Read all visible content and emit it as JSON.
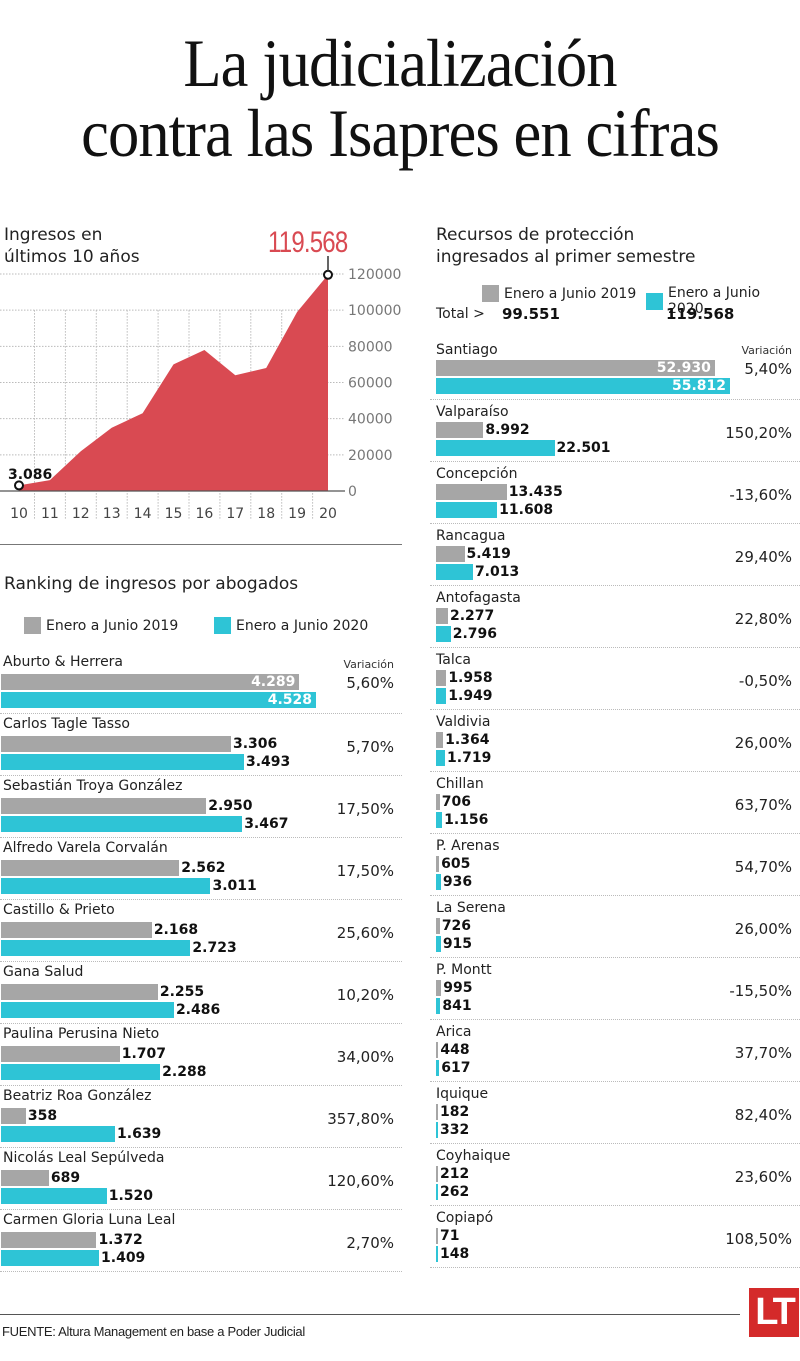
{
  "header": {
    "title_line1": "La judicialización",
    "title_line2": "contra las Isapres en cifras"
  },
  "legend": {
    "series_2019": "Enero a Junio 2019",
    "series_2020": "Enero a Junio 2020",
    "color_2019": "#a6a6a6",
    "color_2020": "#2ec4d6"
  },
  "variation_header": "Variación",
  "chart_data": [
    {
      "type": "area",
      "title": "Ingresos en últimos 10 años",
      "title_line1": "Ingresos en",
      "title_line2": "últimos 10 años",
      "x": [
        "10",
        "11",
        "12",
        "13",
        "14",
        "15",
        "16",
        "17",
        "18",
        "19",
        "20"
      ],
      "values": [
        3086,
        6000,
        22000,
        35000,
        43000,
        70000,
        78000,
        64000,
        68000,
        99000,
        119568
      ],
      "yticks": [
        "0",
        "20000",
        "40000",
        "60000",
        "80000",
        "100000",
        "120000"
      ],
      "ylim": [
        0,
        120000
      ],
      "grid": true,
      "color": "#d94a52",
      "start_label": "3.086",
      "peak_label": "119.568",
      "xlabel": "",
      "ylabel": ""
    },
    {
      "type": "bar",
      "title": "Ranking de ingresos por abogados",
      "series": [
        {
          "name": "Enero a Junio 2019",
          "values": [
            4289,
            3306,
            2950,
            2562,
            2168,
            2255,
            1707,
            358,
            689,
            1372
          ]
        },
        {
          "name": "Enero a Junio 2020",
          "values": [
            4528,
            3493,
            3467,
            3011,
            2723,
            2486,
            2288,
            1639,
            1520,
            1409
          ]
        }
      ],
      "categories": [
        "Aburto & Herrera",
        "Carlos Tagle Tasso",
        "Sebastián Troya González",
        "Alfredo Varela Corvalán",
        "Castillo & Prieto",
        "Gana Salud",
        "Paulina Perusina Nieto",
        "Beatriz Roa González",
        "Nicolás Leal Sepúlveda",
        "Carmen Gloria Luna Leal"
      ],
      "labels_2019": [
        "4.289",
        "3.306",
        "2.950",
        "2.562",
        "2.168",
        "2.255",
        "1.707",
        "358",
        "689",
        "1.372"
      ],
      "labels_2020": [
        "4.528",
        "3.493",
        "3.467",
        "3.011",
        "2.723",
        "2.486",
        "2.288",
        "1.639",
        "1.520",
        "1.409"
      ],
      "variation": [
        "5,60%",
        "5,70%",
        "17,50%",
        "17,50%",
        "25,60%",
        "10,20%",
        "34,00%",
        "357,80%",
        "120,60%",
        "2,70%"
      ],
      "max": 4528
    },
    {
      "type": "bar",
      "title": "Recursos de protección ingresados al primer semestre",
      "title_line1": "Recursos de protección",
      "title_line2": "ingresados al primer semestre",
      "total_label": "Total >",
      "total_2019": "99.551",
      "total_2020": "119.568",
      "series": [
        {
          "name": "Enero a Junio 2019",
          "values": [
            52930,
            8992,
            13435,
            5419,
            2277,
            1958,
            1364,
            706,
            605,
            726,
            995,
            448,
            182,
            212,
            71
          ]
        },
        {
          "name": "Enero a Junio 2020",
          "values": [
            55812,
            22501,
            11608,
            7013,
            2796,
            1949,
            1719,
            1156,
            936,
            915,
            841,
            617,
            332,
            262,
            148
          ]
        }
      ],
      "categories": [
        "Santiago",
        "Valparaíso",
        "Concepción",
        "Rancagua",
        "Antofagasta",
        "Talca",
        "Valdivia",
        "Chillan",
        "P. Arenas",
        "La Serena",
        "P. Montt",
        "Arica",
        "Iquique",
        "Coyhaique",
        "Copiapó"
      ],
      "labels_2019": [
        "52.930",
        "8.992",
        "13.435",
        "5.419",
        "2.277",
        "1.958",
        "1.364",
        "706",
        "605",
        "726",
        "995",
        "448",
        "182",
        "212",
        "71"
      ],
      "labels_2020": [
        "55.812",
        "22.501",
        "11.608",
        "7.013",
        "2.796",
        "1.949",
        "1.719",
        "1.156",
        "936",
        "915",
        "841",
        "617",
        "332",
        "262",
        "148"
      ],
      "variation": [
        "5,40%",
        "150,20%",
        "-13,60%",
        "29,40%",
        "22,80%",
        "-0,50%",
        "26,00%",
        "63,70%",
        "54,70%",
        "26,00%",
        "-15,50%",
        "37,70%",
        "82,40%",
        "23,60%",
        "108,50%"
      ],
      "max": 55812
    }
  ],
  "footer": {
    "source": "FUENTE: Altura Management en base a Poder Judicial",
    "logo": "LT"
  }
}
